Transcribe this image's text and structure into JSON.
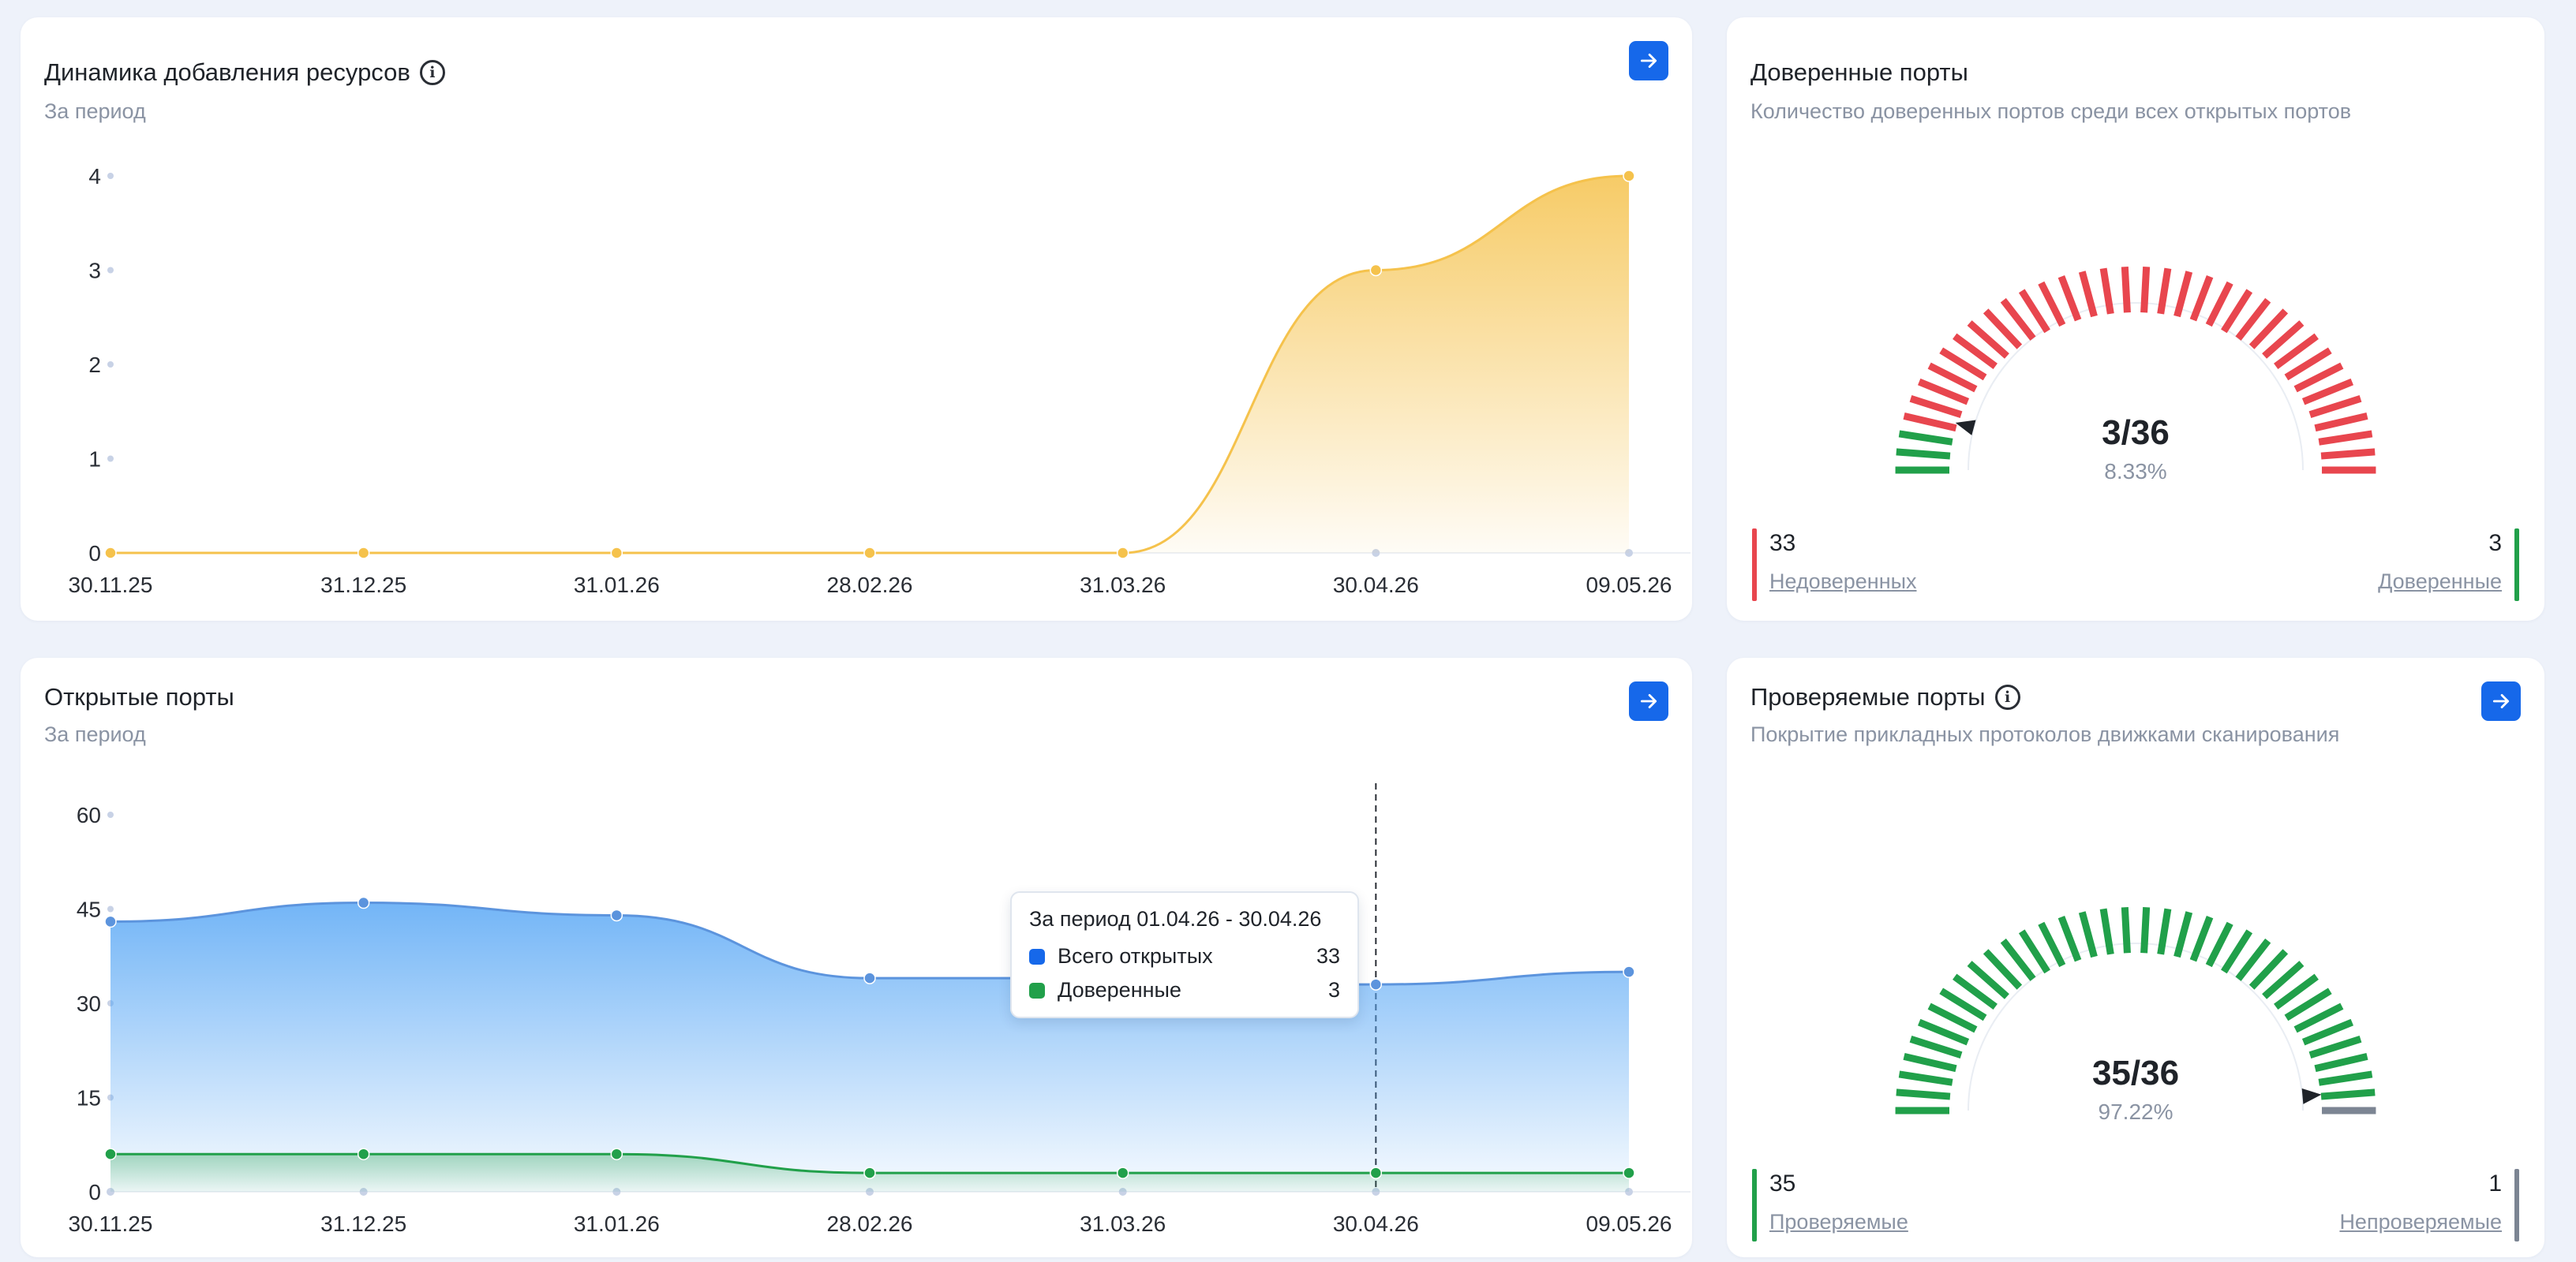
{
  "resources_card": {
    "title": "Динамика добавления ресурсов",
    "subtitle": "За период"
  },
  "trusted_ports_card": {
    "title": "Доверенные порты",
    "subtitle": "Количество доверенных портов среди всех открытых портов",
    "gauge_main": "3/36",
    "gauge_pct": "8.33%",
    "gauge_fraction": 0.0833,
    "left_value": "33",
    "left_label": "Недоверенных",
    "right_value": "3",
    "right_label": "Доверенные",
    "colors": {
      "active": "#e8464e",
      "inactive": "#21a04a"
    }
  },
  "open_ports_card": {
    "title": "Открытые порты",
    "subtitle": "За период",
    "tooltip": {
      "title": "За период 01.04.26 - 30.04.26",
      "rows": [
        {
          "label": "Всего открытых",
          "value": "33",
          "color": "#1668ea"
        },
        {
          "label": "Доверенные",
          "value": "3",
          "color": "#21a04a"
        }
      ]
    }
  },
  "checked_ports_card": {
    "title": "Проверяемые порты",
    "subtitle": "Покрытие прикладных протоколов движками сканирования",
    "gauge_main": "35/36",
    "gauge_pct": "97.22%",
    "gauge_fraction": 0.9722,
    "left_value": "35",
    "left_label": "Проверяемые",
    "right_value": "1",
    "right_label": "Непроверяемые",
    "colors": {
      "active": "#21a04a",
      "inactive": "#7c8593"
    }
  },
  "chart_data": [
    {
      "type": "area",
      "categories": [
        "30.11.25",
        "31.12.25",
        "31.01.26",
        "28.02.26",
        "31.03.26",
        "30.04.26",
        "09.05.26"
      ],
      "series": [
        {
          "values": [
            0,
            0,
            0,
            0,
            0,
            3,
            4
          ],
          "color": "#f5c24c"
        }
      ],
      "yticks": [
        0,
        1,
        2,
        3,
        4
      ],
      "ylim": [
        0,
        4
      ],
      "grid": false
    },
    {
      "type": "area",
      "categories": [
        "30.11.25",
        "31.12.25",
        "31.01.26",
        "28.02.26",
        "31.03.26",
        "30.04.26",
        "09.05.26"
      ],
      "series": [
        {
          "name": "Всего открытых",
          "values": [
            43,
            46,
            44,
            34,
            34,
            33,
            35
          ],
          "color": "#5aa8f5"
        },
        {
          "name": "Доверенные",
          "values": [
            6,
            6,
            6,
            3,
            3,
            3,
            3
          ],
          "color": "#21a04a"
        }
      ],
      "yticks": [
        0,
        15,
        30,
        45,
        60
      ],
      "ylim": [
        0,
        60
      ],
      "highlight_category": "30.04.26",
      "grid": false
    }
  ]
}
